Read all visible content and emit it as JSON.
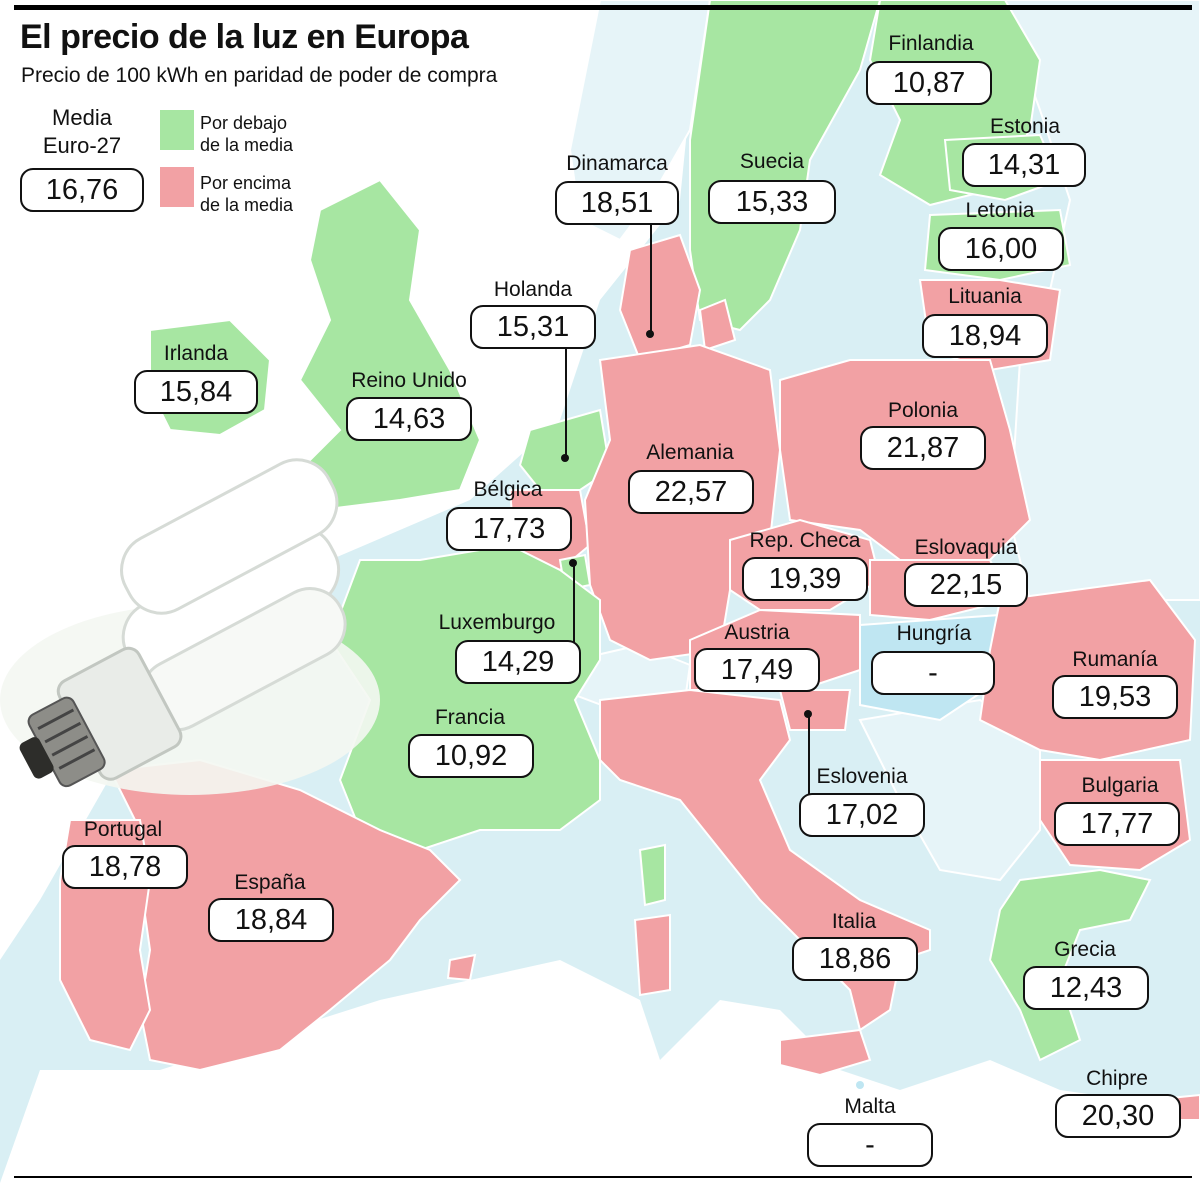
{
  "title": "El precio de la luz en Europa",
  "subtitle": "Precio de 100 kWh en paridad de poder de compra",
  "average": {
    "label_line1": "Media",
    "label_line2": "Euro-27",
    "value": "16,76"
  },
  "legend": {
    "below": {
      "line1": "Por debajo",
      "line2": "de la media",
      "color": "#a7e6a2"
    },
    "above": {
      "line1": "Por encima",
      "line2": "de la media",
      "color": "#f2a1a4"
    }
  },
  "colors": {
    "sea": "#d9eff4",
    "below": "#a7e6a2",
    "above": "#f2a1a4",
    "no_data": "#bfe6f2",
    "other_land": "#ffffff"
  },
  "countries": {
    "finlandia": {
      "name": "Finlandia",
      "value": "10,87",
      "status": "below"
    },
    "estonia": {
      "name": "Estonia",
      "value": "14,31",
      "status": "below"
    },
    "letonia": {
      "name": "Letonia",
      "value": "16,00",
      "status": "below"
    },
    "lituania": {
      "name": "Lituania",
      "value": "18,94",
      "status": "above"
    },
    "suecia": {
      "name": "Suecia",
      "value": "15,33",
      "status": "below"
    },
    "dinamarca": {
      "name": "Dinamarca",
      "value": "18,51",
      "status": "above"
    },
    "holanda": {
      "name": "Holanda",
      "value": "15,31",
      "status": "below"
    },
    "irlanda": {
      "name": "Irlanda",
      "value": "15,84",
      "status": "below"
    },
    "reino_unido": {
      "name": "Reino Unido",
      "value": "14,63",
      "status": "below"
    },
    "belgica": {
      "name": "Bélgica",
      "value": "17,73",
      "status": "above"
    },
    "alemania": {
      "name": "Alemania",
      "value": "22,57",
      "status": "above"
    },
    "polonia": {
      "name": "Polonia",
      "value": "21,87",
      "status": "above"
    },
    "rep_checa": {
      "name": "Rep. Checa",
      "value": "19,39",
      "status": "above"
    },
    "eslovaquia": {
      "name": "Eslovaquia",
      "value": "22,15",
      "status": "above"
    },
    "luxemburgo": {
      "name": "Luxemburgo",
      "value": "14,29",
      "status": "below"
    },
    "austria": {
      "name": "Austria",
      "value": "17,49",
      "status": "above"
    },
    "hungria": {
      "name": "Hungría",
      "value": "-",
      "status": "no_data"
    },
    "rumania": {
      "name": "Rumanía",
      "value": "19,53",
      "status": "above"
    },
    "francia": {
      "name": "Francia",
      "value": "10,92",
      "status": "below"
    },
    "eslovenia": {
      "name": "Eslovenia",
      "value": "17,02",
      "status": "above"
    },
    "bulgaria": {
      "name": "Bulgaria",
      "value": "17,77",
      "status": "above"
    },
    "portugal": {
      "name": "Portugal",
      "value": "18,78",
      "status": "above"
    },
    "espana": {
      "name": "España",
      "value": "18,84",
      "status": "above"
    },
    "italia": {
      "name": "Italia",
      "value": "18,86",
      "status": "above"
    },
    "grecia": {
      "name": "Grecia",
      "value": "12,43",
      "status": "below"
    },
    "chipre": {
      "name": "Chipre",
      "value": "20,30",
      "status": "above"
    },
    "malta": {
      "name": "Malta",
      "value": "-",
      "status": "no_data"
    }
  }
}
